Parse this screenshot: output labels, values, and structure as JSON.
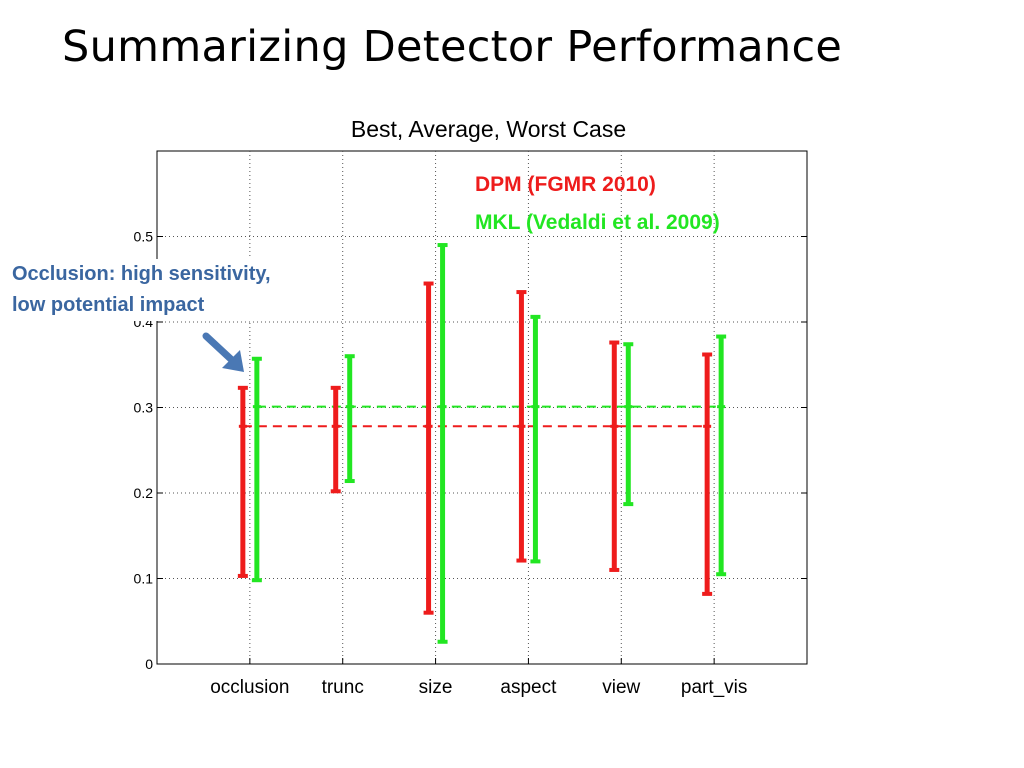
{
  "slide": {
    "title": "Summarizing Detector Performance"
  },
  "chart_data": {
    "type": "errorbar",
    "title": "Best, Average, Worst Case",
    "xlabel": "",
    "ylabel": "",
    "categories": [
      "occlusion",
      "trunc",
      "size",
      "aspect",
      "view",
      "part_vis"
    ],
    "ylim": [
      0,
      0.6
    ],
    "yticks": [
      0,
      0.1,
      0.2,
      0.3,
      0.4,
      0.5
    ],
    "ytick_labels": [
      "0",
      "0.1",
      "0.2",
      "0.3",
      "0.4",
      "0.5"
    ],
    "grid": true,
    "series": [
      {
        "name": "DPM (FGMR 2010)",
        "color": "#ee1c1c",
        "worst": [
          0.103,
          0.202,
          0.06,
          0.121,
          0.11,
          0.082
        ],
        "average": [
          0.278,
          0.278,
          0.278,
          0.278,
          0.278,
          0.278
        ],
        "best": [
          0.323,
          0.323,
          0.445,
          0.435,
          0.376,
          0.362
        ],
        "overall_average": 0.278
      },
      {
        "name": "MKL (Vedaldi et al. 2009)",
        "color": "#22e622",
        "worst": [
          0.098,
          0.214,
          0.026,
          0.12,
          0.187,
          0.105
        ],
        "average": [
          0.301,
          0.301,
          0.301,
          0.301,
          0.301,
          0.301
        ],
        "best": [
          0.357,
          0.36,
          0.49,
          0.406,
          0.374,
          0.383
        ],
        "overall_average": 0.301
      }
    ],
    "legend": {
      "placement": "top-right"
    }
  },
  "annotation": {
    "line1": "Occlusion: high sensitivity,",
    "line2": "low potential impact",
    "color": "#3a66a0",
    "arrow": "arrow-down-right-icon"
  }
}
